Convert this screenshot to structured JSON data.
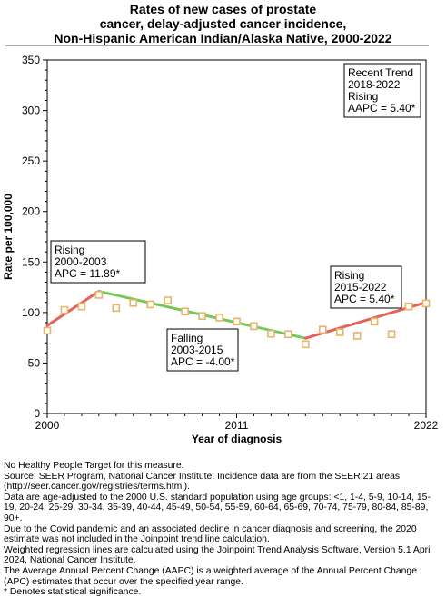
{
  "title_lines": [
    "Rates of new cases of prostate",
    "cancer, delay-adjusted cancer incidence,",
    "Non-Hispanic American Indian/Alaska Native,  2000-2022"
  ],
  "chart_data": {
    "type": "scatter",
    "xlabel": "Year of diagnosis",
    "ylabel": "Rate per 100,000",
    "xlim": [
      2000,
      2022
    ],
    "ylim": [
      0,
      350
    ],
    "x_ticks": [
      "2000",
      "2011",
      "2022"
    ],
    "y_ticks": [
      "0",
      "50",
      "100",
      "150",
      "200",
      "250",
      "300",
      "350"
    ],
    "grid": false,
    "points": {
      "x": [
        2000,
        2001,
        2002,
        2003,
        2004,
        2005,
        2006,
        2007,
        2008,
        2009,
        2010,
        2011,
        2012,
        2013,
        2014,
        2015,
        2016,
        2017,
        2018,
        2019,
        2020,
        2021,
        2022
      ],
      "y": [
        82.0,
        102.5,
        106.0,
        117.5,
        104.5,
        109.5,
        108.0,
        112.0,
        101.0,
        96.5,
        95.0,
        91.0,
        86.5,
        79.0,
        78.5,
        68.5,
        83.0,
        80.5,
        77.0,
        91.0,
        78.5,
        106.0,
        109.0
      ],
      "color": "#e6b566"
    },
    "trend_lines": [
      {
        "x": [
          2000,
          2003
        ],
        "y": [
          87.0,
          121.0
        ],
        "color": "#e8605a"
      },
      {
        "x": [
          2003,
          2015
        ],
        "y": [
          121.0,
          74.5
        ],
        "color": "#74c95a"
      },
      {
        "x": [
          2015,
          2022
        ],
        "y": [
          74.5,
          110.0
        ],
        "color": "#e8605a"
      }
    ],
    "annotations": [
      {
        "lines": [
          "Rising",
          "2000-2003",
          "APC = 11.89*"
        ]
      },
      {
        "lines": [
          "Falling",
          "2003-2015",
          "APC = -4.00*"
        ]
      },
      {
        "lines": [
          "Rising",
          "2015-2022",
          "APC =  5.40*"
        ]
      },
      {
        "lines": [
          "Recent Trend",
          "2018-2022",
          "Rising",
          "AAPC =  5.40*"
        ]
      }
    ]
  },
  "footnotes": [
    "No Healthy People Target for this measure.",
    "Source: SEER Program, National Cancer Institute. Incidence data are from the SEER 21 areas (http://seer.cancer.gov/registries/terms.html).",
    "Data are age-adjusted to the 2000 U.S. standard population using age groups: <1, 1-4, 5-9, 10-14, 15-19, 20-24, 25-29, 30-34, 35-39, 40-44, 45-49, 50-54, 55-59, 60-64, 65-69, 70-74, 75-79, 80-84, 85-89, 90+.",
    "Due to the Covid pandemic and an associated decline in cancer diagnosis and screening, the 2020 estimate was not included in the Joinpoint trend line calculation.",
    "Weighted regression lines are calculated using the Joinpoint Trend Analysis Software, Version 5.1 April 2024, National Cancer Institute.",
    "The Average Annual Percent Change (AAPC) is a weighted average of the Annual Percent Change (APC) estimates that occur over the specified year range.",
    "* Denotes statistical significance."
  ]
}
